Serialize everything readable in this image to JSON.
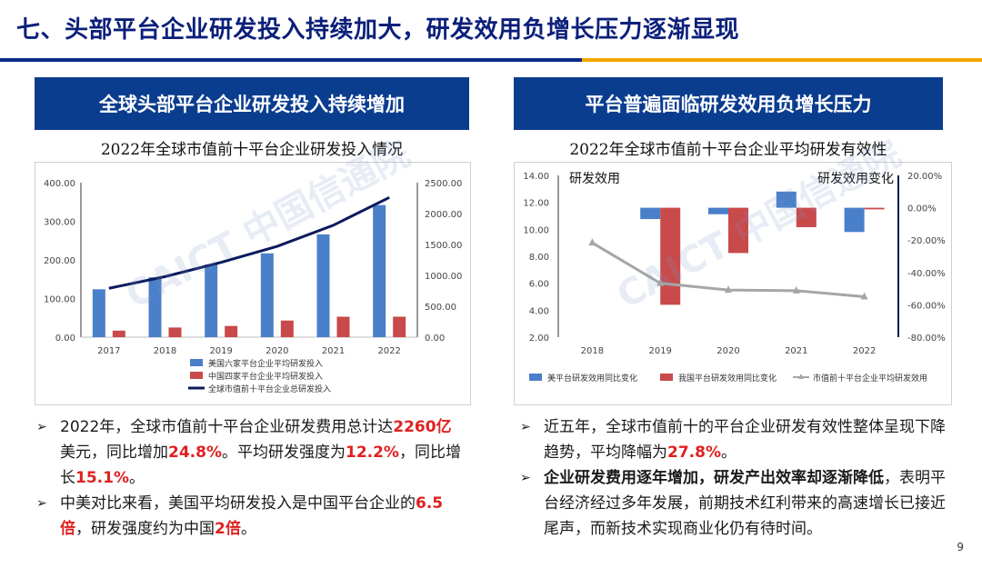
{
  "title": "七、头部平台企业研发投入持续加大，研发效用负增长压力逐渐显现",
  "left_panel": {
    "header": "全球头部平台企业研发投入持续增加",
    "chart_title": "2022年全球市值前十平台企业研发投入情况",
    "bullets": [
      {
        "parts": [
          {
            "t": "2022年，全球市值前十平台企业研发费用总计达"
          },
          {
            "t": "2260亿",
            "red": true
          },
          {
            "t": "美元，同比增加"
          },
          {
            "t": "24.8%",
            "red": true
          },
          {
            "t": "。平均研发强度为"
          },
          {
            "t": "12.2%",
            "red": true
          },
          {
            "t": "，同比增长"
          },
          {
            "t": "15.1%",
            "red": true
          },
          {
            "t": "。"
          }
        ]
      },
      {
        "parts": [
          {
            "t": "中美对比来看，美国平均研发投入是中国平台企业的"
          },
          {
            "t": "6.5倍",
            "red": true
          },
          {
            "t": "，研发强度约为中国"
          },
          {
            "t": "2倍",
            "red": true
          },
          {
            "t": "。"
          }
        ]
      }
    ]
  },
  "right_panel": {
    "header": "平台普遍面临研发效用负增长压力",
    "chart_title": "2022年全球市值前十平台企业平均研发有效性",
    "bullets": [
      {
        "parts": [
          {
            "t": "近五年，全球市值前十的平台企业研发有效性整体呈现下降趋势，平均降幅为"
          },
          {
            "t": "27.8%",
            "red": true
          },
          {
            "t": "。"
          }
        ]
      },
      {
        "parts": [
          {
            "t": "企业研发费用逐年增加，研发产出效率却逐渐降低",
            "bold": true
          },
          {
            "t": "，表明平台经济经过多年发展，前期技术红利带来的高速增长已接近尾声，而新技术实现商业化仍有待时间。"
          }
        ]
      }
    ]
  },
  "bullet_mark": "➢",
  "watermark": "CAICT 中国信通院",
  "page_number": "9",
  "chart_data": [
    {
      "type": "bar",
      "categories": [
        "2017",
        "2018",
        "2019",
        "2020",
        "2021",
        "2022"
      ],
      "series": [
        {
          "name": "美国六家平台企业平均研发投入",
          "axis": "left",
          "values": [
            124,
            155,
            188,
            217,
            266,
            342
          ],
          "color": "#4a7fc9"
        },
        {
          "name": "中国四家平台企业平均研发投入",
          "axis": "left",
          "values": [
            17,
            25,
            29,
            43,
            53,
            53
          ],
          "color": "#c94a4a"
        },
        {
          "name": "全球市值前十平台企业总研发投入",
          "axis": "right",
          "type": "line",
          "values": [
            790,
            980,
            1210,
            1470,
            1810,
            2260
          ],
          "color": "#0b1a5c"
        }
      ],
      "left_ticks": [
        "0.00",
        "100.00",
        "200.00",
        "300.00",
        "400.00"
      ],
      "right_ticks": [
        "0.00",
        "500.00",
        "1000.00",
        "1500.00",
        "2000.00",
        "2500.00"
      ],
      "ylim": [
        0,
        400
      ],
      "y2lim": [
        0,
        2500
      ]
    },
    {
      "type": "bar",
      "categories": [
        "2018",
        "2019",
        "2020",
        "2021",
        "2022"
      ],
      "axis_label_left": "研发效用",
      "axis_label_right": "研发效用变化",
      "series": [
        {
          "name": "美平台研发效用同比变化",
          "axis": "right",
          "values": [
            null,
            -7,
            -4,
            10,
            -15
          ],
          "color": "#4a7fc9"
        },
        {
          "name": "我国平台研发效用同比变化",
          "axis": "right",
          "values": [
            null,
            -60,
            -28,
            -12,
            -1
          ],
          "color": "#c94a4a"
        },
        {
          "name": "市值前十平台企业平均研发效用",
          "axis": "left",
          "type": "line",
          "values": [
            9.0,
            6.0,
            5.5,
            5.45,
            5.0
          ],
          "color": "#a6a6a6"
        }
      ],
      "left_ticks": [
        "2.00",
        "4.00",
        "6.00",
        "8.00",
        "10.00",
        "12.00",
        "14.00"
      ],
      "right_ticks": [
        "-80.00%",
        "-60.00%",
        "-40.00%",
        "-20.00%",
        "0.00%",
        "20.00%"
      ],
      "ylim": [
        2,
        14
      ],
      "y2lim": [
        -80,
        20
      ]
    }
  ]
}
